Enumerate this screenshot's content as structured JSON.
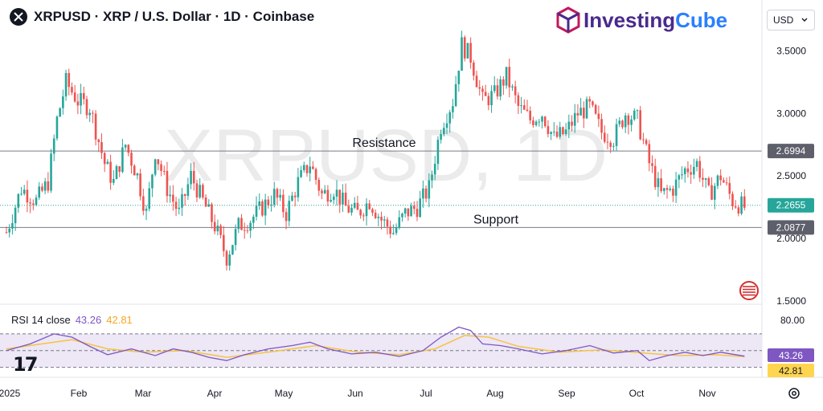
{
  "header": {
    "title": "XRPUSD · XRP / U.S. Dollar · 1D · Coinbase",
    "brand_main": "Investing",
    "brand_accent": "Cube",
    "currency": "USD",
    "watermark": "XRPUSD, 1D"
  },
  "rsi": {
    "label": "RSI 14 close",
    "rsi_value": "43.26",
    "ma_value": "42.81",
    "axis_top": "80.00",
    "badge_rsi": "43.26",
    "badge_ma": "42.81"
  },
  "colors": {
    "up": "#26a69a",
    "down": "#ef5350",
    "rsi": "#7e57c2",
    "rsi_ma": "#f5c542",
    "band": "#ede7f6",
    "level": "#787b86"
  },
  "chart_data": {
    "type": "candlestick",
    "symbol": "XRPUSD",
    "interval": "1D",
    "y_axis_ticks": [
      3.5,
      3.0,
      2.5,
      2.0,
      1.5
    ],
    "y_tick_labels": [
      "3.5000",
      "3.0000",
      "2.5000",
      "2.0000",
      "1.5000"
    ],
    "ylim": [
      1.5,
      3.65
    ],
    "x_tick_labels": [
      "2025",
      "Feb",
      "Mar",
      "Apr",
      "May",
      "Jun",
      "Jul",
      "Aug",
      "Sep",
      "Oct",
      "Nov"
    ],
    "levels": [
      {
        "name": "Resistance",
        "value": 2.6994,
        "label": "2.6994"
      },
      {
        "name": "Support",
        "value": 2.0877,
        "label": "2.0877"
      }
    ],
    "last_price": {
      "value": 2.2655,
      "label": "2.2655"
    },
    "trend": [
      {
        "x": 0,
        "y": 2.05
      },
      {
        "x": 5,
        "y": 2.4
      },
      {
        "x": 10,
        "y": 2.3
      },
      {
        "x": 14,
        "y": 2.45
      },
      {
        "x": 17,
        "y": 2.95
      },
      {
        "x": 20,
        "y": 3.25
      },
      {
        "x": 24,
        "y": 3.1
      },
      {
        "x": 28,
        "y": 3.05
      },
      {
        "x": 33,
        "y": 2.6
      },
      {
        "x": 36,
        "y": 2.45
      },
      {
        "x": 40,
        "y": 2.75
      },
      {
        "x": 44,
        "y": 2.5
      },
      {
        "x": 47,
        "y": 2.2
      },
      {
        "x": 50,
        "y": 2.7
      },
      {
        "x": 54,
        "y": 2.4
      },
      {
        "x": 58,
        "y": 2.2
      },
      {
        "x": 62,
        "y": 2.5
      },
      {
        "x": 66,
        "y": 2.3
      },
      {
        "x": 70,
        "y": 2.1
      },
      {
        "x": 74,
        "y": 1.85
      },
      {
        "x": 78,
        "y": 2.1
      },
      {
        "x": 82,
        "y": 2.15
      },
      {
        "x": 86,
        "y": 2.25
      },
      {
        "x": 90,
        "y": 2.35
      },
      {
        "x": 94,
        "y": 2.2
      },
      {
        "x": 98,
        "y": 2.45
      },
      {
        "x": 102,
        "y": 2.6
      },
      {
        "x": 106,
        "y": 2.35
      },
      {
        "x": 110,
        "y": 2.4
      },
      {
        "x": 114,
        "y": 2.25
      },
      {
        "x": 118,
        "y": 2.2
      },
      {
        "x": 122,
        "y": 2.3
      },
      {
        "x": 126,
        "y": 2.15
      },
      {
        "x": 130,
        "y": 2.05
      },
      {
        "x": 134,
        "y": 2.2
      },
      {
        "x": 138,
        "y": 2.25
      },
      {
        "x": 142,
        "y": 2.4
      },
      {
        "x": 146,
        "y": 2.9
      },
      {
        "x": 150,
        "y": 3.1
      },
      {
        "x": 153,
        "y": 3.55
      },
      {
        "x": 156,
        "y": 3.45
      },
      {
        "x": 160,
        "y": 3.1
      },
      {
        "x": 164,
        "y": 3.15
      },
      {
        "x": 168,
        "y": 3.3
      },
      {
        "x": 172,
        "y": 3.05
      },
      {
        "x": 176,
        "y": 2.95
      },
      {
        "x": 180,
        "y": 3.0
      },
      {
        "x": 184,
        "y": 2.8
      },
      {
        "x": 188,
        "y": 2.85
      },
      {
        "x": 192,
        "y": 3.0
      },
      {
        "x": 196,
        "y": 3.05
      },
      {
        "x": 200,
        "y": 2.85
      },
      {
        "x": 204,
        "y": 2.8
      },
      {
        "x": 208,
        "y": 3.0
      },
      {
        "x": 212,
        "y": 2.95
      },
      {
        "x": 216,
        "y": 2.6
      },
      {
        "x": 220,
        "y": 2.35
      },
      {
        "x": 224,
        "y": 2.4
      },
      {
        "x": 228,
        "y": 2.55
      },
      {
        "x": 232,
        "y": 2.6
      },
      {
        "x": 236,
        "y": 2.35
      },
      {
        "x": 240,
        "y": 2.5
      },
      {
        "x": 244,
        "y": 2.3
      },
      {
        "x": 248,
        "y": 2.25
      }
    ],
    "rsi_series": [
      {
        "x": 0,
        "y": 50
      },
      {
        "x": 8,
        "y": 58
      },
      {
        "x": 16,
        "y": 70
      },
      {
        "x": 22,
        "y": 66
      },
      {
        "x": 28,
        "y": 55
      },
      {
        "x": 34,
        "y": 45
      },
      {
        "x": 42,
        "y": 52
      },
      {
        "x": 50,
        "y": 44
      },
      {
        "x": 56,
        "y": 52
      },
      {
        "x": 62,
        "y": 48
      },
      {
        "x": 68,
        "y": 42
      },
      {
        "x": 74,
        "y": 38
      },
      {
        "x": 80,
        "y": 45
      },
      {
        "x": 88,
        "y": 52
      },
      {
        "x": 96,
        "y": 56
      },
      {
        "x": 102,
        "y": 60
      },
      {
        "x": 108,
        "y": 52
      },
      {
        "x": 116,
        "y": 46
      },
      {
        "x": 124,
        "y": 48
      },
      {
        "x": 132,
        "y": 43
      },
      {
        "x": 140,
        "y": 50
      },
      {
        "x": 146,
        "y": 66
      },
      {
        "x": 152,
        "y": 78
      },
      {
        "x": 156,
        "y": 74
      },
      {
        "x": 160,
        "y": 58
      },
      {
        "x": 166,
        "y": 56
      },
      {
        "x": 172,
        "y": 52
      },
      {
        "x": 180,
        "y": 46
      },
      {
        "x": 188,
        "y": 50
      },
      {
        "x": 196,
        "y": 56
      },
      {
        "x": 204,
        "y": 47
      },
      {
        "x": 212,
        "y": 50
      },
      {
        "x": 216,
        "y": 38
      },
      {
        "x": 222,
        "y": 44
      },
      {
        "x": 228,
        "y": 48
      },
      {
        "x": 234,
        "y": 44
      },
      {
        "x": 240,
        "y": 48
      },
      {
        "x": 248,
        "y": 43.26
      }
    ],
    "rsi_ma_series": [
      {
        "x": 0,
        "y": 52
      },
      {
        "x": 12,
        "y": 58
      },
      {
        "x": 22,
        "y": 63
      },
      {
        "x": 34,
        "y": 52
      },
      {
        "x": 46,
        "y": 48
      },
      {
        "x": 60,
        "y": 50
      },
      {
        "x": 74,
        "y": 42
      },
      {
        "x": 90,
        "y": 49
      },
      {
        "x": 104,
        "y": 56
      },
      {
        "x": 118,
        "y": 48
      },
      {
        "x": 132,
        "y": 45
      },
      {
        "x": 144,
        "y": 52
      },
      {
        "x": 154,
        "y": 68
      },
      {
        "x": 162,
        "y": 66
      },
      {
        "x": 172,
        "y": 55
      },
      {
        "x": 186,
        "y": 48
      },
      {
        "x": 200,
        "y": 51
      },
      {
        "x": 214,
        "y": 47
      },
      {
        "x": 226,
        "y": 44
      },
      {
        "x": 238,
        "y": 45
      },
      {
        "x": 248,
        "y": 42.81
      }
    ],
    "rsi_bands": [
      70,
      50,
      30
    ]
  }
}
